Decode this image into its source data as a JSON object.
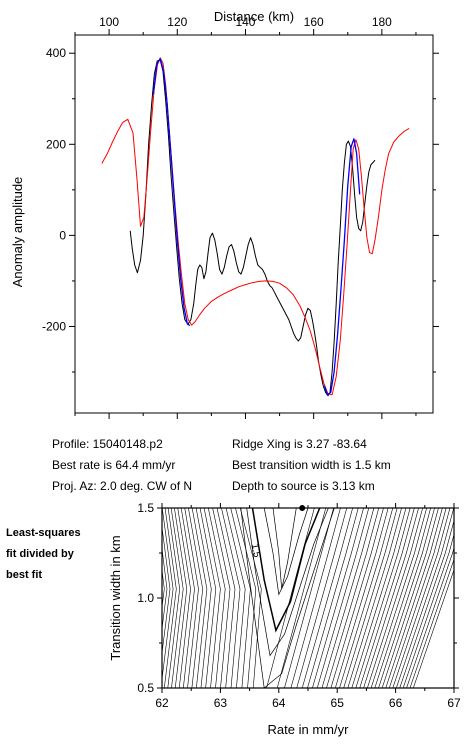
{
  "info": {
    "profile": "Profile: 15040148.p2",
    "ridge": "Ridge Xing is 3.27 -83.64",
    "rate": "Best rate is 64.4 mm/yr",
    "transition": "Best transition width is 1.5 km",
    "azimuth": "Proj. Az: 2.0 deg. CW of N",
    "depth": "Depth to source is   3.13 km"
  },
  "side_label": [
    "Least-squares",
    "fit divided by",
    "best fit"
  ],
  "chart_data": [
    {
      "type": "line",
      "xlabel": "Distance (km)",
      "ylabel": "Anomaly amplitude",
      "xlim": [
        90,
        195
      ],
      "ylim": [
        -390,
        440
      ],
      "xticks": [
        100,
        120,
        140,
        160,
        180
      ],
      "yticks": [
        -200,
        0,
        200,
        400
      ],
      "xtick_labels": [
        "100",
        "120",
        "140",
        "160",
        "180"
      ],
      "ytick_labels": [
        "-200",
        "0",
        "200",
        "400"
      ],
      "series": [
        {
          "color": "#000000",
          "x": [
            106.2,
            106.8,
            107.5,
            108.3,
            109.2,
            110.0,
            110.8,
            111.6,
            112.5,
            113.3,
            114.1,
            115.0,
            115.8,
            116.6,
            117.4,
            118.2,
            119.0,
            119.8,
            120.6,
            121.4,
            122.2,
            123.1,
            124.0,
            124.8,
            125.4,
            126.0,
            126.6,
            127.2,
            127.8,
            128.4,
            129.0,
            129.6,
            130.3,
            131.0,
            131.7,
            132.4,
            133.1,
            133.8,
            134.5,
            135.2,
            135.9,
            136.6,
            137.3,
            138.0,
            138.7,
            139.4,
            140.1,
            140.8,
            141.5,
            142.2,
            142.9,
            143.6,
            144.3,
            145.0,
            145.7,
            146.4,
            147.1,
            147.8,
            148.5,
            149.2,
            149.9,
            150.6,
            151.3,
            152.0,
            152.7,
            153.4,
            154.1,
            154.8,
            155.5,
            156.2,
            156.9,
            157.6,
            158.3,
            159.0,
            159.6,
            160.2,
            160.8,
            161.4,
            162.1,
            162.8,
            163.5,
            164.2,
            164.8,
            165.4,
            166.0,
            166.6,
            167.2,
            167.8,
            168.4,
            169.0,
            169.6,
            170.2,
            170.8,
            171.4,
            172.0,
            172.6,
            173.2,
            173.8,
            174.4,
            175.0,
            175.6,
            176.2,
            176.8,
            177.4,
            178.0
          ],
          "y": [
            10,
            -30,
            -65,
            -82,
            -55,
            0,
            90,
            200,
            290,
            355,
            383,
            385,
            360,
            295,
            220,
            130,
            50,
            -25,
            -95,
            -150,
            -185,
            -195,
            -185,
            -150,
            -110,
            -75,
            -65,
            -70,
            -95,
            -80,
            -40,
            -5,
            5,
            -10,
            -40,
            -75,
            -85,
            -70,
            -45,
            -25,
            -20,
            -35,
            -60,
            -80,
            -85,
            -70,
            -45,
            -20,
            -5,
            -20,
            -45,
            -65,
            -70,
            -75,
            -85,
            -100,
            -110,
            -115,
            -125,
            -135,
            -145,
            -155,
            -165,
            -175,
            -185,
            -200,
            -215,
            -225,
            -232,
            -225,
            -200,
            -175,
            -160,
            -165,
            -185,
            -210,
            -240,
            -275,
            -305,
            -330,
            -345,
            -352,
            -345,
            -300,
            -235,
            -150,
            -60,
            20,
            100,
            160,
            200,
            207,
            195,
            150,
            90,
            40,
            15,
            10,
            30,
            70,
            110,
            140,
            155,
            160,
            165
          ],
          "x_visible_end": 178.0
        },
        {
          "color": "#ff0000",
          "x": [
            97.9,
            99.5,
            101.0,
            102.5,
            104.0,
            105.5,
            107.0,
            108.2,
            109.2,
            110.2,
            111.2,
            112.2,
            113.2,
            114.2,
            115.0,
            115.8,
            116.6,
            117.5,
            118.4,
            119.3,
            120.2,
            121.2,
            122.2,
            123.2,
            124.2,
            125.2,
            126.5,
            128.0,
            130.0,
            132.0,
            134.0,
            136.0,
            138.0,
            140.0,
            142.0,
            144.0,
            146.0,
            148.0,
            150.0,
            152.0,
            154.0,
            156.0,
            157.5,
            159.0,
            160.5,
            161.8,
            163.0,
            164.2,
            165.4,
            166.6,
            167.8,
            168.8,
            169.8,
            170.8,
            171.6,
            172.4,
            173.2,
            174.0,
            174.8,
            175.6,
            176.4,
            177.2,
            178.0,
            179.0,
            180.0,
            181.0,
            182.0,
            183.5,
            185.0,
            186.5,
            188.0
          ],
          "y": [
            158,
            180,
            205,
            228,
            248,
            255,
            225,
            120,
            20,
            40,
            130,
            230,
            320,
            375,
            390,
            378,
            330,
            245,
            160,
            70,
            -10,
            -85,
            -150,
            -185,
            -197,
            -190,
            -175,
            -160,
            -145,
            -135,
            -127,
            -120,
            -113,
            -108,
            -104,
            -101,
            -100,
            -101,
            -105,
            -115,
            -130,
            -155,
            -180,
            -210,
            -250,
            -290,
            -325,
            -348,
            -350,
            -310,
            -230,
            -130,
            -20,
            100,
            190,
            210,
            190,
            130,
            60,
            -5,
            -38,
            -40,
            -10,
            40,
            100,
            145,
            180,
            205,
            218,
            228,
            235
          ]
        },
        {
          "color": "#0000ff",
          "x": [
            113.0,
            114.0,
            115.0,
            116.0,
            117.0,
            118.0,
            119.0,
            120.0,
            121.0,
            122.0,
            123.0,
            123.7
          ],
          "y": [
            310,
            375,
            388,
            360,
            290,
            190,
            90,
            -10,
            -95,
            -160,
            -195,
            -198
          ]
        },
        {
          "color": "#0000ff",
          "x": [
            163.2,
            164.0,
            165.0,
            166.0,
            167.0,
            168.0,
            169.0,
            170.0,
            171.0,
            171.8,
            172.6,
            173.5
          ],
          "y": [
            -330,
            -350,
            -345,
            -300,
            -220,
            -120,
            -10,
            110,
            195,
            212,
            180,
            90
          ]
        }
      ]
    },
    {
      "type": "contour",
      "xlabel": "Rate in mm/yr",
      "ylabel": "Transition width in km",
      "xlim": [
        62,
        67
      ],
      "ylim": [
        0.5,
        1.5
      ],
      "xticks": [
        62,
        63,
        64,
        65,
        66,
        67
      ],
      "yticks": [
        0.5,
        1.0,
        1.5
      ],
      "xtick_labels": [
        "62",
        "63",
        "64",
        "65",
        "66",
        "67"
      ],
      "ytick_labels": [
        "0.5",
        "1.0",
        "1.5"
      ],
      "best_fit_point": {
        "x": 64.4,
        "y": 1.5
      },
      "contour_label": "1.5",
      "valley": {
        "x_top": 64.0,
        "x_bottom": 64.0,
        "y_top": 1.0,
        "y_bottom": 0.5
      },
      "inner_contours": [
        {
          "x": [
            63.9,
            64.0,
            64.05,
            64.15,
            64.3
          ],
          "y": [
            1.5,
            1.25,
            1.05,
            1.2,
            1.5
          ],
          "bold": false
        },
        {
          "x": [
            63.75,
            63.9,
            64.0,
            64.15,
            64.35,
            64.5
          ],
          "y": [
            1.5,
            1.25,
            1.02,
            1.12,
            1.35,
            1.5
          ],
          "bold": false
        },
        {
          "x": [
            63.55,
            63.75,
            63.95,
            64.2,
            64.45,
            64.7
          ],
          "y": [
            1.5,
            1.1,
            0.82,
            0.98,
            1.3,
            1.5
          ],
          "bold": true
        },
        {
          "x": [
            63.45,
            63.6,
            63.85,
            64.1,
            64.35,
            64.6,
            64.85
          ],
          "y": [
            1.5,
            1.15,
            0.68,
            0.8,
            1.05,
            1.3,
            1.5
          ],
          "bold": false
        },
        {
          "x": [
            63.35,
            63.5,
            63.75,
            64.05,
            64.3,
            64.6,
            64.95
          ],
          "y": [
            1.5,
            1.1,
            0.5,
            0.58,
            0.85,
            1.15,
            1.5
          ],
          "bold": false
        }
      ],
      "left_lines": 34,
      "right_lines": 34
    }
  ]
}
